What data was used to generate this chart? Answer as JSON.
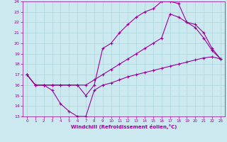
{
  "xlabel": "Windchill (Refroidissement éolien,°C)",
  "bg_color": "#cce9f0",
  "line_color": "#990099",
  "grid_color": "#b0d8e0",
  "xlim": [
    -0.5,
    23.5
  ],
  "ylim": [
    13,
    24
  ],
  "xticks": [
    0,
    1,
    2,
    3,
    4,
    5,
    6,
    7,
    8,
    9,
    10,
    11,
    12,
    13,
    14,
    15,
    16,
    17,
    18,
    19,
    20,
    21,
    22,
    23
  ],
  "yticks": [
    13,
    14,
    15,
    16,
    17,
    18,
    19,
    20,
    21,
    22,
    23,
    24
  ],
  "line1_x": [
    0,
    1,
    2,
    3,
    4,
    5,
    6,
    7,
    8,
    9,
    10,
    11,
    12,
    13,
    14,
    15,
    16,
    17,
    18,
    19,
    20,
    21,
    22,
    23
  ],
  "line1_y": [
    17.0,
    16.0,
    16.0,
    15.5,
    14.2,
    13.5,
    13.0,
    13.0,
    15.5,
    16.0,
    16.2,
    16.5,
    16.8,
    17.0,
    17.2,
    17.4,
    17.6,
    17.8,
    18.0,
    18.2,
    18.4,
    18.6,
    18.7,
    18.5
  ],
  "line2_x": [
    0,
    1,
    2,
    3,
    4,
    5,
    6,
    7,
    8,
    9,
    10,
    11,
    12,
    13,
    14,
    15,
    16,
    17,
    18,
    19,
    20,
    21,
    22,
    23
  ],
  "line2_y": [
    17.0,
    16.0,
    16.0,
    16.0,
    16.0,
    16.0,
    16.0,
    15.0,
    16.0,
    19.5,
    20.0,
    21.0,
    21.8,
    22.5,
    23.0,
    23.3,
    24.0,
    24.0,
    23.8,
    22.0,
    21.5,
    20.5,
    19.3,
    18.5
  ],
  "line3_x": [
    0,
    1,
    2,
    3,
    4,
    5,
    6,
    7,
    8,
    9,
    10,
    11,
    12,
    13,
    14,
    15,
    16,
    17,
    18,
    19,
    20,
    21,
    22,
    23
  ],
  "line3_y": [
    17.0,
    16.0,
    16.0,
    16.0,
    16.0,
    16.0,
    16.0,
    16.0,
    16.5,
    17.0,
    17.5,
    18.0,
    18.5,
    19.0,
    19.5,
    20.0,
    20.5,
    22.8,
    22.5,
    22.0,
    21.8,
    21.0,
    19.5,
    18.5
  ]
}
